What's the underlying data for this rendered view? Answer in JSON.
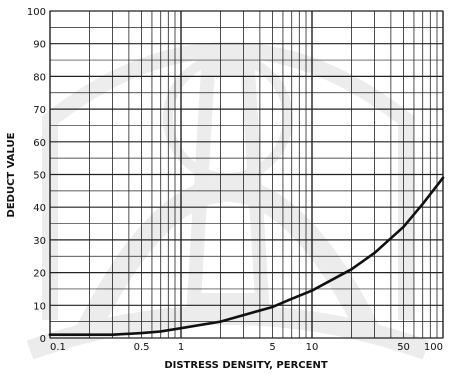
{
  "chart_data": {
    "type": "line",
    "title": "",
    "xlabel": "DISTRESS DENSITY, PERCENT",
    "ylabel": "DEDUCT VALUE",
    "x_scale": "log",
    "xlim": [
      0.1,
      100
    ],
    "ylim": [
      0,
      100
    ],
    "grid": true,
    "x_ticks": [
      {
        "value": 0.1,
        "label": "0.1"
      },
      {
        "value": 0.5,
        "label": "0.5"
      },
      {
        "value": 1,
        "label": "1"
      },
      {
        "value": 5,
        "label": "5"
      },
      {
        "value": 10,
        "label": "10"
      },
      {
        "value": 50,
        "label": "50"
      },
      {
        "value": 100,
        "label": "100"
      }
    ],
    "y_ticks": [
      0,
      10,
      20,
      30,
      40,
      50,
      60,
      70,
      80,
      90,
      100
    ],
    "series": [
      {
        "x": [
          0.1,
          0.2,
          0.3,
          0.5,
          0.7,
          1,
          2,
          3,
          5,
          7,
          10,
          20,
          30,
          50,
          70,
          100
        ],
        "y": [
          1,
          1,
          1,
          1.5,
          2,
          3,
          5,
          7,
          9.5,
          12,
          14.5,
          21,
          26,
          34,
          41,
          49
        ]
      }
    ],
    "colors": {
      "grid": "#222222",
      "curve": "#111111",
      "watermark": "#6a6a6a"
    }
  }
}
